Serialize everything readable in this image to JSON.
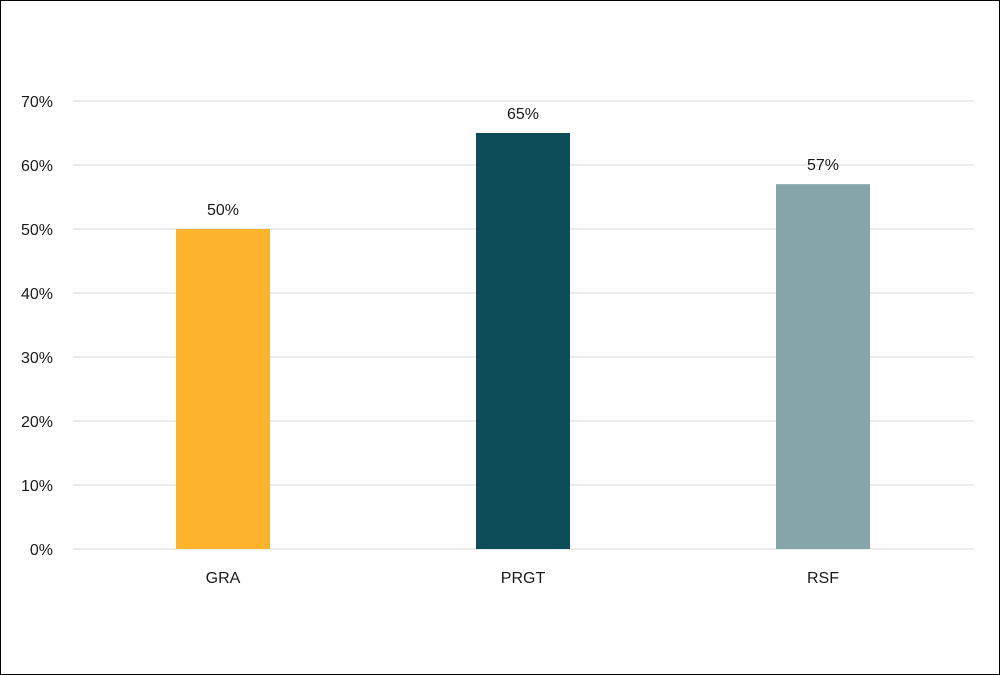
{
  "chart_data": {
    "type": "bar",
    "categories": [
      "GRA",
      "PRGT",
      "RSF"
    ],
    "values": [
      50,
      65,
      57
    ],
    "data_labels": [
      "50%",
      "65%",
      "57%"
    ],
    "colors": [
      "#FDB42C",
      "#0D4D5A",
      "#85A5AB"
    ],
    "title": "",
    "xlabel": "",
    "ylabel": "",
    "ylim": [
      0,
      70
    ],
    "yticks": [
      0,
      10,
      20,
      30,
      40,
      50,
      60,
      70
    ],
    "ytick_labels": [
      "0%",
      "10%",
      "20%",
      "30%",
      "40%",
      "50%",
      "60%",
      "70%"
    ],
    "grid": true,
    "legend": "none"
  }
}
